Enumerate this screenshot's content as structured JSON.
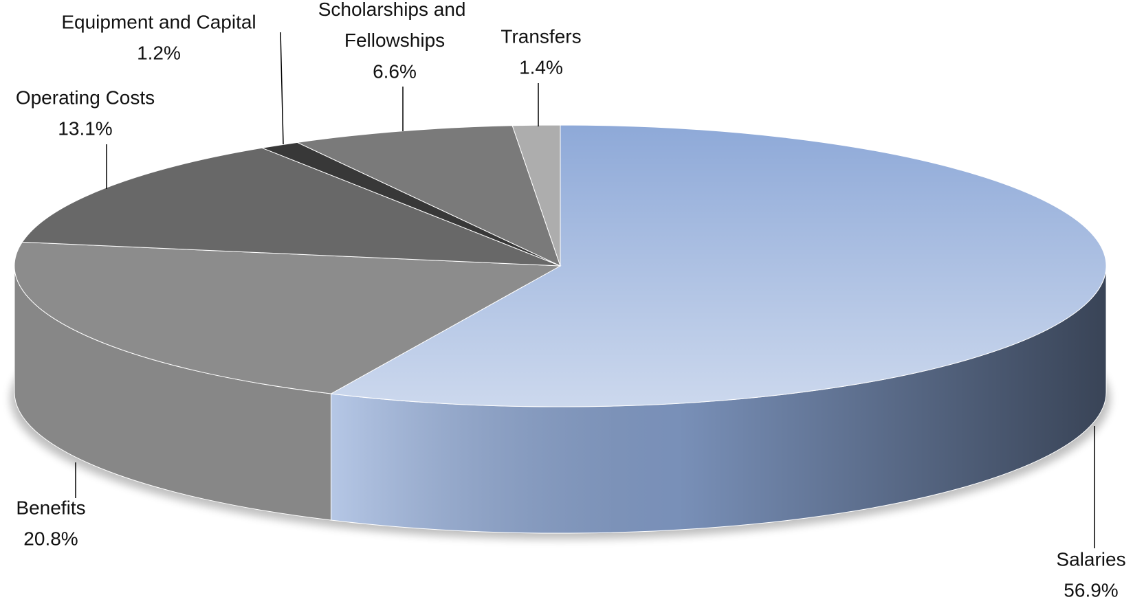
{
  "chart_data": {
    "type": "pie3d",
    "categories": [
      "Salaries",
      "Benefits",
      "Operating Costs",
      "Equipment and Capital",
      "Scholarships and Fellowships",
      "Transfers"
    ],
    "values": [
      56.9,
      20.8,
      13.1,
      1.2,
      6.6,
      1.4
    ],
    "value_labels": [
      "56.9%",
      "20.8%",
      "13.1%",
      "1.2%",
      "6.6%",
      "1.4%"
    ],
    "colors": [
      "#8ea9d8",
      "#8c8c8c",
      "#686868",
      "#383838",
      "#7a7a7a",
      "#adadad"
    ]
  }
}
